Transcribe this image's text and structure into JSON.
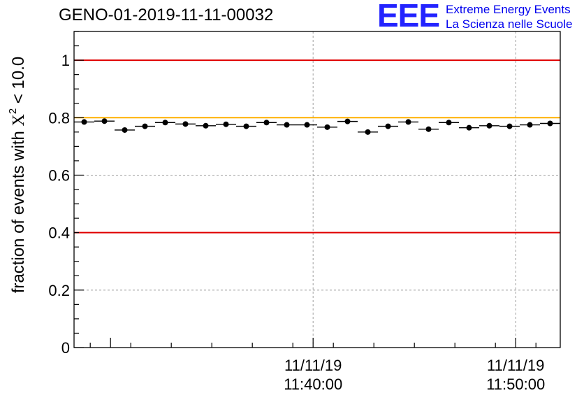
{
  "header": {
    "title": "GENO-01-2019-11-11-00032",
    "logo_mark": "EEE",
    "logo_line1": "Extreme Energy Events",
    "logo_line2": "La Scienza nelle Scuole"
  },
  "colors": {
    "red_line": "#e00000",
    "yellow_line": "#ffb000",
    "markers": "#000000",
    "grid": "#a0a0a0",
    "logo": "#2323ff"
  },
  "chart_data": {
    "type": "scatter",
    "title": "GENO-01-2019-11-11-00032",
    "ylabel_prefix": "fraction of events with",
    "ylabel_symbol": "X",
    "ylabel_sup": "2",
    "ylabel_suffix": "< 10.0",
    "xlabel": "",
    "ylim": [
      0,
      1.1
    ],
    "yticks": [
      0,
      0.2,
      0.4,
      0.6,
      0.8,
      1
    ],
    "yticklabels": [
      "0",
      "0.2",
      "0.4",
      "0.6",
      "0.8",
      "1"
    ],
    "xlim_minutes_after_11_30": [
      -1.8,
      22.2
    ],
    "xticks": [
      {
        "minutes": 10,
        "date": "11/11/19",
        "time": "11:40:00"
      },
      {
        "minutes": 20,
        "date": "11/11/19",
        "time": "11:50:00"
      }
    ],
    "bin_width_minutes": 1.0,
    "series": [
      {
        "name": "fraction",
        "x_minutes": [
          -1.3,
          -0.3,
          0.7,
          1.7,
          2.7,
          3.7,
          4.7,
          5.7,
          6.7,
          7.7,
          8.7,
          9.7,
          10.7,
          11.7,
          12.7,
          13.7,
          14.7,
          15.7,
          16.7,
          17.7,
          18.7,
          19.7,
          20.7,
          21.7
        ],
        "values": [
          0.785,
          0.788,
          0.757,
          0.77,
          0.783,
          0.778,
          0.772,
          0.777,
          0.77,
          0.783,
          0.775,
          0.775,
          0.767,
          0.787,
          0.75,
          0.77,
          0.785,
          0.76,
          0.783,
          0.765,
          0.772,
          0.77,
          0.775,
          0.78
        ]
      }
    ],
    "reference_lines": [
      {
        "y": 1.0,
        "color": "red"
      },
      {
        "y": 0.8,
        "color": "yellow"
      },
      {
        "y": 0.4,
        "color": "red"
      }
    ],
    "grid": true
  }
}
